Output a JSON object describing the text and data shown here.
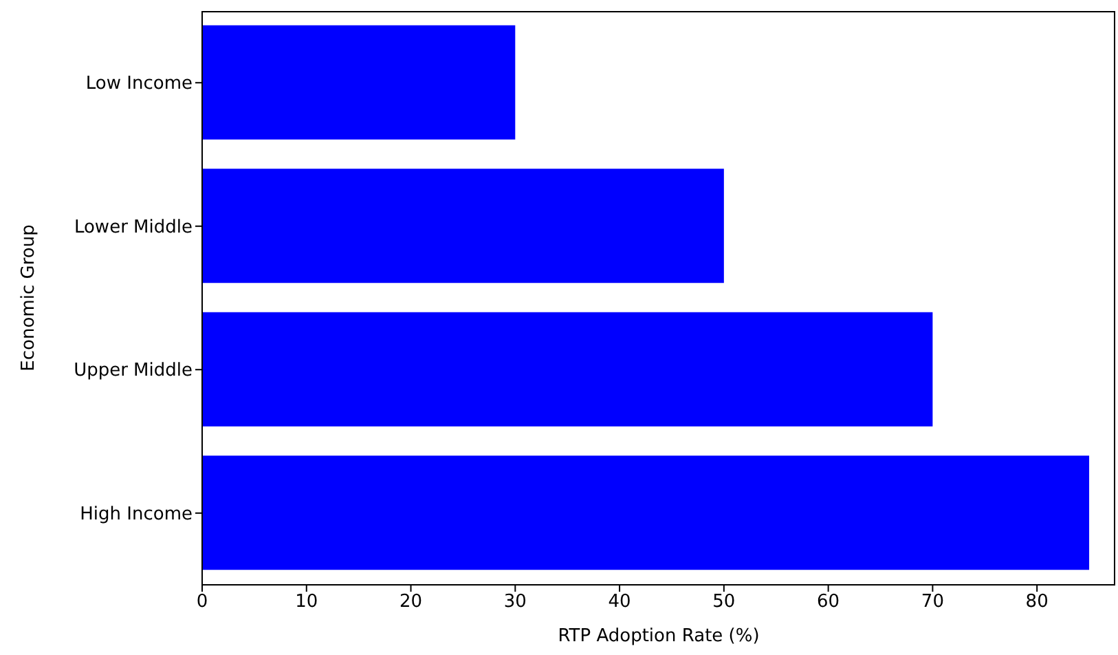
{
  "chart_data": {
    "type": "bar",
    "orientation": "horizontal",
    "categories": [
      "Low Income",
      "Lower Middle",
      "Upper Middle",
      "High Income"
    ],
    "values": [
      30,
      50,
      70,
      85
    ],
    "color": "#0000ff",
    "xlabel": "RTP Adoption Rate (%)",
    "ylabel": "Economic Group",
    "xlim": [
      0,
      87.5
    ],
    "xticks": [
      0,
      10,
      20,
      30,
      40,
      50,
      60,
      70,
      80
    ],
    "grid": false,
    "legend": false
  }
}
